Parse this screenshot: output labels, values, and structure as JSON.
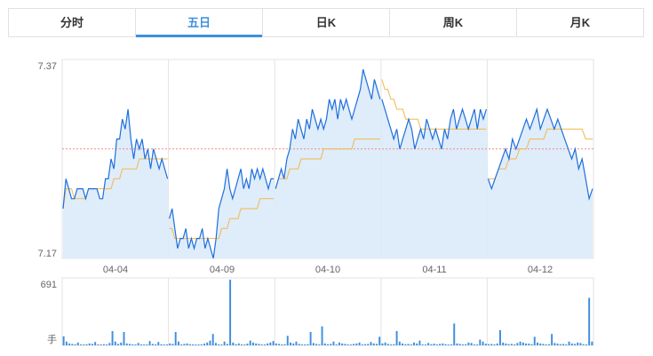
{
  "tabs": [
    {
      "label": "分时",
      "active": false
    },
    {
      "label": "五日",
      "active": true
    },
    {
      "label": "日K",
      "active": false
    },
    {
      "label": "周K",
      "active": false
    },
    {
      "label": "月K",
      "active": false
    }
  ],
  "colors": {
    "price_line": "#1e6fdc",
    "price_fill": "#dceaf9",
    "avg_line": "#f2b84b",
    "ref_line": "#f08a8a",
    "volume_bar": "#3d8ee0",
    "grid": "#e3e3e3",
    "axis_text": "#666666",
    "active_tab": "#3f8fdc"
  },
  "chart_data": [
    {
      "type": "line",
      "name": "five-day-price",
      "ylim": [
        7.17,
        7.37
      ],
      "y_tick_labels": [
        "7.37",
        "7.17"
      ],
      "day_labels": [
        "04-04",
        "04-09",
        "04-10",
        "04-11",
        "04-12"
      ],
      "ref_price": 7.28,
      "grid": true,
      "series": [
        {
          "name": "price",
          "values": [
            7.22,
            7.25,
            7.24,
            7.23,
            7.23,
            7.24,
            7.24,
            7.24,
            7.23,
            7.24,
            7.24,
            7.24,
            7.24,
            7.23,
            7.23,
            7.25,
            7.25,
            7.27,
            7.26,
            7.29,
            7.29,
            7.31,
            7.3,
            7.32,
            7.29,
            7.27,
            7.29,
            7.28,
            7.29,
            7.27,
            7.28,
            7.26,
            7.28,
            7.27,
            7.26,
            7.27,
            7.26,
            7.25,
            7.21,
            7.22,
            7.2,
            7.18,
            7.19,
            7.19,
            7.2,
            7.18,
            7.19,
            7.18,
            7.19,
            7.19,
            7.2,
            7.18,
            7.19,
            7.18,
            7.17,
            7.19,
            7.22,
            7.23,
            7.24,
            7.26,
            7.24,
            7.23,
            7.24,
            7.25,
            7.26,
            7.24,
            7.25,
            7.24,
            7.26,
            7.25,
            7.26,
            7.25,
            7.26,
            7.25,
            7.24,
            7.25,
            7.25,
            7.24,
            7.25,
            7.26,
            7.25,
            7.27,
            7.28,
            7.3,
            7.29,
            7.31,
            7.3,
            7.29,
            7.31,
            7.3,
            7.32,
            7.31,
            7.3,
            7.31,
            7.3,
            7.31,
            7.33,
            7.32,
            7.33,
            7.31,
            7.33,
            7.32,
            7.33,
            7.32,
            7.31,
            7.32,
            7.33,
            7.34,
            7.36,
            7.35,
            7.34,
            7.33,
            7.35,
            7.34,
            7.33,
            7.33,
            7.32,
            7.31,
            7.3,
            7.29,
            7.3,
            7.28,
            7.29,
            7.3,
            7.31,
            7.3,
            7.28,
            7.29,
            7.3,
            7.29,
            7.31,
            7.3,
            7.29,
            7.3,
            7.29,
            7.28,
            7.3,
            7.29,
            7.31,
            7.32,
            7.3,
            7.31,
            7.32,
            7.31,
            7.3,
            7.31,
            7.32,
            7.3,
            7.32,
            7.31,
            7.32,
            7.25,
            7.24,
            7.25,
            7.26,
            7.27,
            7.28,
            7.27,
            7.29,
            7.28,
            7.29,
            7.3,
            7.31,
            7.3,
            7.31,
            7.32,
            7.3,
            7.31,
            7.32,
            7.31,
            7.3,
            7.31,
            7.3,
            7.29,
            7.28,
            7.27,
            7.28,
            7.26,
            7.27,
            7.25,
            7.23,
            7.24
          ]
        },
        {
          "name": "average",
          "values": [
            7.22,
            7.24,
            7.24,
            7.24,
            7.23,
            7.23,
            7.23,
            7.23,
            7.23,
            7.24,
            7.24,
            7.24,
            7.24,
            7.24,
            7.24,
            7.24,
            7.24,
            7.24,
            7.25,
            7.25,
            7.25,
            7.26,
            7.26,
            7.26,
            7.26,
            7.26,
            7.26,
            7.27,
            7.27,
            7.27,
            7.27,
            7.27,
            7.27,
            7.27,
            7.27,
            7.27,
            7.27,
            7.27,
            7.2,
            7.2,
            7.19,
            7.19,
            7.19,
            7.19,
            7.19,
            7.19,
            7.19,
            7.19,
            7.19,
            7.19,
            7.19,
            7.19,
            7.19,
            7.19,
            7.19,
            7.19,
            7.19,
            7.2,
            7.2,
            7.2,
            7.21,
            7.21,
            7.21,
            7.21,
            7.22,
            7.22,
            7.22,
            7.22,
            7.22,
            7.22,
            7.22,
            7.23,
            7.23,
            7.23,
            7.23,
            7.23,
            7.23,
            7.24,
            7.25,
            7.25,
            7.25,
            7.25,
            7.26,
            7.26,
            7.26,
            7.26,
            7.27,
            7.27,
            7.27,
            7.27,
            7.27,
            7.27,
            7.27,
            7.27,
            7.28,
            7.28,
            7.28,
            7.28,
            7.28,
            7.28,
            7.28,
            7.28,
            7.28,
            7.28,
            7.28,
            7.29,
            7.29,
            7.29,
            7.29,
            7.29,
            7.29,
            7.29,
            7.29,
            7.29,
            7.29,
            7.35,
            7.34,
            7.34,
            7.33,
            7.33,
            7.32,
            7.32,
            7.32,
            7.31,
            7.31,
            7.31,
            7.31,
            7.31,
            7.3,
            7.3,
            7.3,
            7.3,
            7.3,
            7.3,
            7.3,
            7.3,
            7.3,
            7.3,
            7.3,
            7.3,
            7.3,
            7.3,
            7.3,
            7.3,
            7.3,
            7.3,
            7.3,
            7.3,
            7.3,
            7.3,
            7.3,
            7.25,
            7.25,
            7.25,
            7.26,
            7.26,
            7.26,
            7.27,
            7.27,
            7.27,
            7.28,
            7.28,
            7.28,
            7.29,
            7.29,
            7.29,
            7.29,
            7.29,
            7.3,
            7.3,
            7.3,
            7.3,
            7.3,
            7.3,
            7.3,
            7.3,
            7.3,
            7.3,
            7.3,
            7.29,
            7.29,
            7.29
          ]
        }
      ]
    },
    {
      "type": "bar",
      "name": "five-day-volume",
      "ylim": [
        0,
        691
      ],
      "y_tick_labels": [
        "691",
        "手"
      ],
      "series": [
        {
          "name": "volume",
          "values": [
            95,
            40,
            20,
            15,
            10,
            30,
            10,
            8,
            12,
            20,
            15,
            35,
            10,
            5,
            12,
            8,
            25,
            150,
            40,
            15,
            30,
            140,
            20,
            15,
            10,
            8,
            25,
            10,
            6,
            10,
            45,
            15,
            10,
            35,
            12,
            8,
            10,
            20,
            15,
            140,
            40,
            10,
            15,
            20,
            12,
            10,
            8,
            6,
            10,
            18,
            30,
            50,
            120,
            25,
            10,
            8,
            40,
            15,
            691,
            30,
            12,
            20,
            10,
            8,
            18,
            50,
            30,
            20,
            15,
            10,
            8,
            20,
            30,
            45,
            20,
            15,
            10,
            12,
            100,
            30,
            20,
            40,
            15,
            10,
            8,
            12,
            140,
            25,
            15,
            10,
            200,
            20,
            12,
            15,
            40,
            10,
            30,
            20,
            15,
            10,
            8,
            15,
            20,
            30,
            10,
            12,
            15,
            35,
            20,
            15,
            90,
            20,
            30,
            15,
            10,
            12,
            150,
            40,
            20,
            12,
            15,
            10,
            30,
            20,
            50,
            10,
            8,
            25,
            12,
            18,
            10,
            15,
            20,
            12,
            8,
            10,
            230,
            20,
            15,
            10,
            12,
            30,
            25,
            10,
            8,
            60,
            40,
            18,
            12,
            15,
            10,
            20,
            160,
            30,
            20,
            12,
            15,
            10,
            25,
            40,
            30,
            20,
            18,
            12,
            90,
            30,
            20,
            15,
            10,
            12,
            120,
            25,
            18,
            12,
            15,
            10,
            40,
            20,
            15,
            30,
            25,
            12,
            10,
            500,
            40
          ]
        }
      ]
    }
  ]
}
